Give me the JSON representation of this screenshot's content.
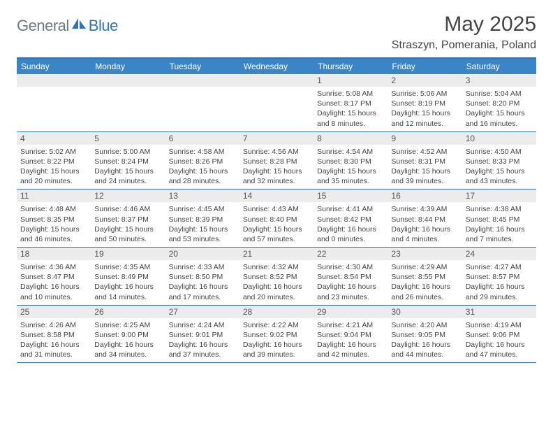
{
  "brand": {
    "part1": "General",
    "part2": "Blue"
  },
  "title": "May 2025",
  "location": "Straszyn, Pomerania, Poland",
  "colors": {
    "header_bg": "#3b85c6",
    "border": "#2f74b5",
    "daynum_bg": "#ececec",
    "text": "#444444",
    "title_text": "#454545",
    "logo_gray": "#6c7a80",
    "logo_blue": "#2f74b5",
    "background": "#ffffff"
  },
  "typography": {
    "title_fontsize": 30,
    "location_fontsize": 16,
    "weekday_fontsize": 12,
    "daynum_fontsize": 12,
    "detail_fontsize": 10.5
  },
  "weekdays": [
    "Sunday",
    "Monday",
    "Tuesday",
    "Wednesday",
    "Thursday",
    "Friday",
    "Saturday"
  ],
  "weeks": [
    [
      {
        "num": "",
        "sunrise": "",
        "sunset": "",
        "daylight": ""
      },
      {
        "num": "",
        "sunrise": "",
        "sunset": "",
        "daylight": ""
      },
      {
        "num": "",
        "sunrise": "",
        "sunset": "",
        "daylight": ""
      },
      {
        "num": "",
        "sunrise": "",
        "sunset": "",
        "daylight": ""
      },
      {
        "num": "1",
        "sunrise": "Sunrise: 5:08 AM",
        "sunset": "Sunset: 8:17 PM",
        "daylight": "Daylight: 15 hours and 8 minutes."
      },
      {
        "num": "2",
        "sunrise": "Sunrise: 5:06 AM",
        "sunset": "Sunset: 8:19 PM",
        "daylight": "Daylight: 15 hours and 12 minutes."
      },
      {
        "num": "3",
        "sunrise": "Sunrise: 5:04 AM",
        "sunset": "Sunset: 8:20 PM",
        "daylight": "Daylight: 15 hours and 16 minutes."
      }
    ],
    [
      {
        "num": "4",
        "sunrise": "Sunrise: 5:02 AM",
        "sunset": "Sunset: 8:22 PM",
        "daylight": "Daylight: 15 hours and 20 minutes."
      },
      {
        "num": "5",
        "sunrise": "Sunrise: 5:00 AM",
        "sunset": "Sunset: 8:24 PM",
        "daylight": "Daylight: 15 hours and 24 minutes."
      },
      {
        "num": "6",
        "sunrise": "Sunrise: 4:58 AM",
        "sunset": "Sunset: 8:26 PM",
        "daylight": "Daylight: 15 hours and 28 minutes."
      },
      {
        "num": "7",
        "sunrise": "Sunrise: 4:56 AM",
        "sunset": "Sunset: 8:28 PM",
        "daylight": "Daylight: 15 hours and 32 minutes."
      },
      {
        "num": "8",
        "sunrise": "Sunrise: 4:54 AM",
        "sunset": "Sunset: 8:30 PM",
        "daylight": "Daylight: 15 hours and 35 minutes."
      },
      {
        "num": "9",
        "sunrise": "Sunrise: 4:52 AM",
        "sunset": "Sunset: 8:31 PM",
        "daylight": "Daylight: 15 hours and 39 minutes."
      },
      {
        "num": "10",
        "sunrise": "Sunrise: 4:50 AM",
        "sunset": "Sunset: 8:33 PM",
        "daylight": "Daylight: 15 hours and 43 minutes."
      }
    ],
    [
      {
        "num": "11",
        "sunrise": "Sunrise: 4:48 AM",
        "sunset": "Sunset: 8:35 PM",
        "daylight": "Daylight: 15 hours and 46 minutes."
      },
      {
        "num": "12",
        "sunrise": "Sunrise: 4:46 AM",
        "sunset": "Sunset: 8:37 PM",
        "daylight": "Daylight: 15 hours and 50 minutes."
      },
      {
        "num": "13",
        "sunrise": "Sunrise: 4:45 AM",
        "sunset": "Sunset: 8:39 PM",
        "daylight": "Daylight: 15 hours and 53 minutes."
      },
      {
        "num": "14",
        "sunrise": "Sunrise: 4:43 AM",
        "sunset": "Sunset: 8:40 PM",
        "daylight": "Daylight: 15 hours and 57 minutes."
      },
      {
        "num": "15",
        "sunrise": "Sunrise: 4:41 AM",
        "sunset": "Sunset: 8:42 PM",
        "daylight": "Daylight: 16 hours and 0 minutes."
      },
      {
        "num": "16",
        "sunrise": "Sunrise: 4:39 AM",
        "sunset": "Sunset: 8:44 PM",
        "daylight": "Daylight: 16 hours and 4 minutes."
      },
      {
        "num": "17",
        "sunrise": "Sunrise: 4:38 AM",
        "sunset": "Sunset: 8:45 PM",
        "daylight": "Daylight: 16 hours and 7 minutes."
      }
    ],
    [
      {
        "num": "18",
        "sunrise": "Sunrise: 4:36 AM",
        "sunset": "Sunset: 8:47 PM",
        "daylight": "Daylight: 16 hours and 10 minutes."
      },
      {
        "num": "19",
        "sunrise": "Sunrise: 4:35 AM",
        "sunset": "Sunset: 8:49 PM",
        "daylight": "Daylight: 16 hours and 14 minutes."
      },
      {
        "num": "20",
        "sunrise": "Sunrise: 4:33 AM",
        "sunset": "Sunset: 8:50 PM",
        "daylight": "Daylight: 16 hours and 17 minutes."
      },
      {
        "num": "21",
        "sunrise": "Sunrise: 4:32 AM",
        "sunset": "Sunset: 8:52 PM",
        "daylight": "Daylight: 16 hours and 20 minutes."
      },
      {
        "num": "22",
        "sunrise": "Sunrise: 4:30 AM",
        "sunset": "Sunset: 8:54 PM",
        "daylight": "Daylight: 16 hours and 23 minutes."
      },
      {
        "num": "23",
        "sunrise": "Sunrise: 4:29 AM",
        "sunset": "Sunset: 8:55 PM",
        "daylight": "Daylight: 16 hours and 26 minutes."
      },
      {
        "num": "24",
        "sunrise": "Sunrise: 4:27 AM",
        "sunset": "Sunset: 8:57 PM",
        "daylight": "Daylight: 16 hours and 29 minutes."
      }
    ],
    [
      {
        "num": "25",
        "sunrise": "Sunrise: 4:26 AM",
        "sunset": "Sunset: 8:58 PM",
        "daylight": "Daylight: 16 hours and 31 minutes."
      },
      {
        "num": "26",
        "sunrise": "Sunrise: 4:25 AM",
        "sunset": "Sunset: 9:00 PM",
        "daylight": "Daylight: 16 hours and 34 minutes."
      },
      {
        "num": "27",
        "sunrise": "Sunrise: 4:24 AM",
        "sunset": "Sunset: 9:01 PM",
        "daylight": "Daylight: 16 hours and 37 minutes."
      },
      {
        "num": "28",
        "sunrise": "Sunrise: 4:22 AM",
        "sunset": "Sunset: 9:02 PM",
        "daylight": "Daylight: 16 hours and 39 minutes."
      },
      {
        "num": "29",
        "sunrise": "Sunrise: 4:21 AM",
        "sunset": "Sunset: 9:04 PM",
        "daylight": "Daylight: 16 hours and 42 minutes."
      },
      {
        "num": "30",
        "sunrise": "Sunrise: 4:20 AM",
        "sunset": "Sunset: 9:05 PM",
        "daylight": "Daylight: 16 hours and 44 minutes."
      },
      {
        "num": "31",
        "sunrise": "Sunrise: 4:19 AM",
        "sunset": "Sunset: 9:06 PM",
        "daylight": "Daylight: 16 hours and 47 minutes."
      }
    ]
  ]
}
